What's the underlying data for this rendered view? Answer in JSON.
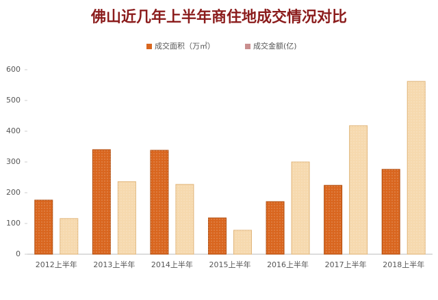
{
  "chart_data": {
    "type": "bar",
    "title": "佛山近几年上半年商住地成交情况对比",
    "categories": [
      "2012上半年",
      "2013上半年",
      "2014上半年",
      "2015上半年",
      "2016上半年",
      "2017上半年",
      "2018上半年"
    ],
    "series": [
      {
        "name": "成交面积（万㎡）",
        "color": "#d9661f",
        "values": [
          176,
          340,
          338,
          118,
          171,
          224,
          276
        ]
      },
      {
        "name": "成交金额(亿)",
        "color": "#f6d9ae",
        "values": [
          116,
          236,
          227,
          78,
          300,
          418,
          562
        ]
      }
    ],
    "ylim": [
      0,
      600
    ],
    "yticks": [
      0,
      100,
      200,
      300,
      400,
      500,
      600
    ],
    "grid": false,
    "legend": "top"
  }
}
